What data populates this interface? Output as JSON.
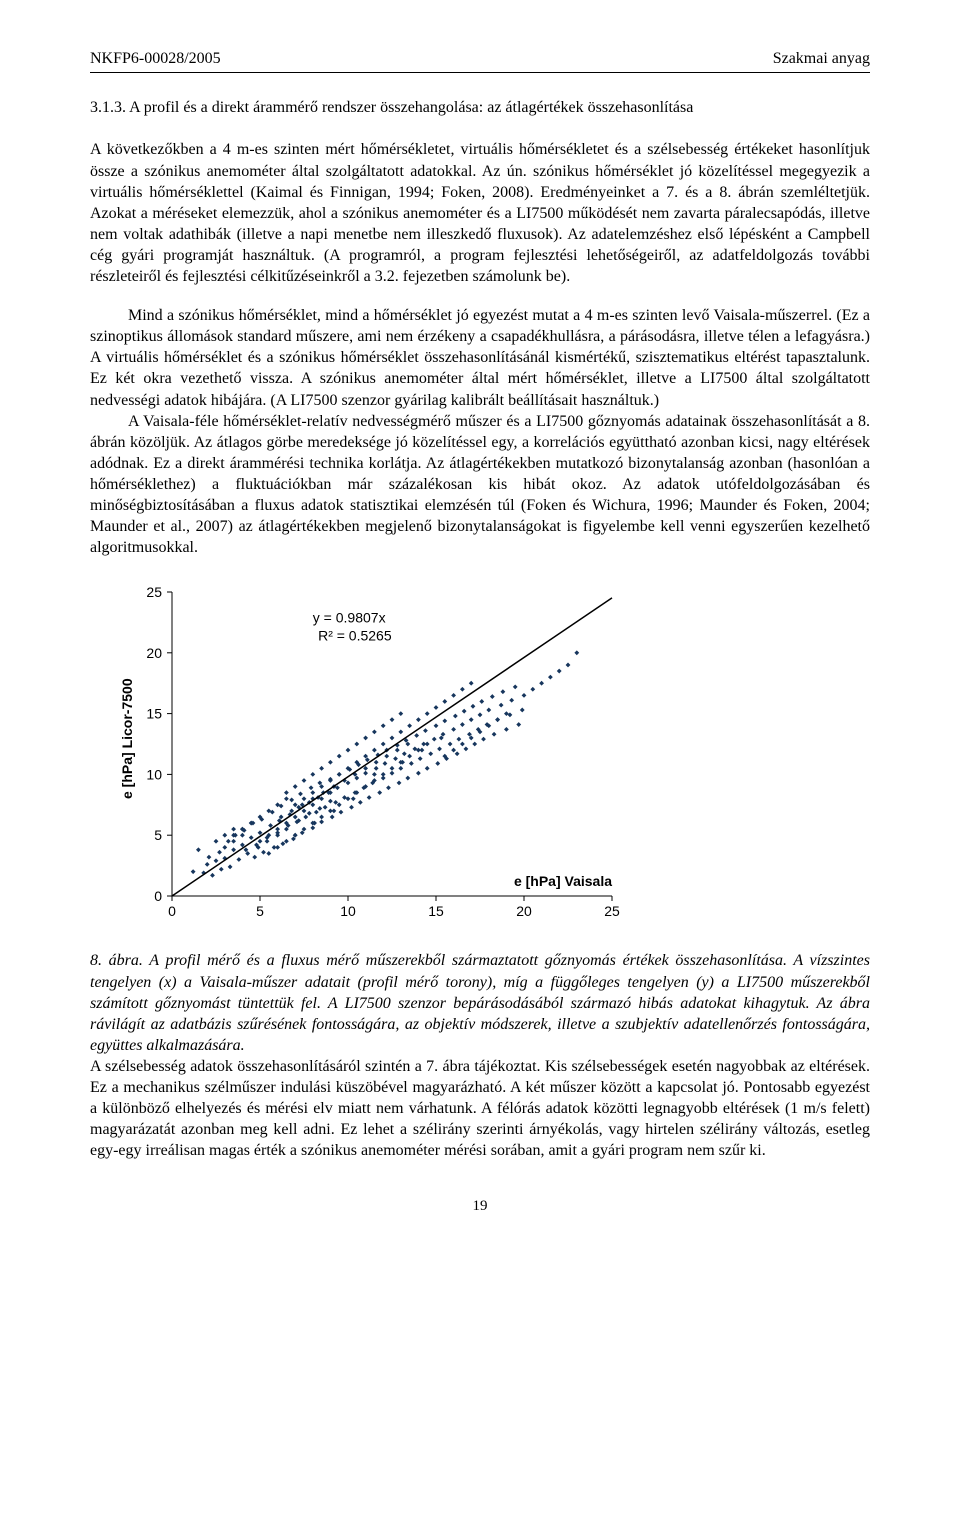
{
  "header": {
    "left": "NKFP6-00028/2005",
    "right": "Szakmai anyag"
  },
  "section": {
    "number": "3.1.3.",
    "title": "A profil és a direkt árammérő rendszer összehangolása: az átlagértékek összehasonlítása"
  },
  "paragraphs": {
    "p1": "A következőkben a 4 m-es szinten mért hőmérsékletet, virtuális hőmérsékletet és a szélsebesség értékeket hasonlítjuk össze a szónikus anemométer által szolgáltatott adatokkal. Az ún. szónikus hőmérséklet jó közelítéssel megegyezik a virtuális hőmérséklettel (Kaimal és Finnigan, 1994; Foken, 2008). Eredményeinket a 7. és a 8. ábrán szemléltetjük. Azokat a méréseket elemezzük, ahol a szónikus anemométer és a LI7500 működését nem zavarta páralecsapódás, illetve nem voltak adathibák (illetve a napi menetbe nem illeszkedő fluxusok). Az adatelemzéshez első lépésként a Campbell cég gyári programját használtuk. (A programról, a program fejlesztési lehetőségeiről, az adatfeldolgozás további részleteiről és fejlesztési célkitűzéseinkről a 3.2. fejezetben számolunk be).",
    "p2": "Mind a szónikus hőmérséklet, mind a hőmérséklet jó egyezést mutat a 4 m-es szinten levő Vaisala-műszerrel. (Ez a szinoptikus állomások standard műszere, ami nem érzékeny a csapadékhullásra, a párásodásra, illetve télen a lefagyásra.) A virtuális hőmérséklet és a szónikus hőmérséklet összehasonlításánál kismértékű, szisztematikus eltérést tapasztalunk. Ez két okra vezethető vissza. A szónikus anemométer által mért hőmérséklet, illetve a LI7500 által szolgáltatott nedvességi adatok hibájára. (A LI7500 szenzor gyárilag kalibrált beállításait használtuk.)",
    "p3": "A Vaisala-féle hőmérséklet-relatív nedvességmérő műszer és a LI7500 gőznyomás adatainak összehasonlítását a 8. ábrán közöljük. Az átlagos görbe meredeksége jó közelítéssel egy, a korrelációs együttható azonban kicsi, nagy eltérések adódnak. Ez a direkt árammérési technika korlátja. Az átlagértékekben mutatkozó bizonytalanság azonban (hasonlóan a hőmérséklethez) a fluktuációkban már százalékosan kis hibát okoz. Az adatok utófeldolgozásában és minőségbiztosításában a fluxus adatok statisztikai elemzésén túl (Foken és Wichura, 1996; Maunder és Foken, 2004; Maunder et al., 2007) az átlagértékekben megjelenő bizonytalanságokat is figyelembe kell venni egyszerűen kezelhető algoritmusokkal."
  },
  "chart": {
    "type": "scatter",
    "xlim": [
      0,
      25
    ],
    "ylim": [
      0,
      25
    ],
    "xticks": [
      0,
      5,
      10,
      15,
      20,
      25
    ],
    "yticks": [
      0,
      5,
      10,
      15,
      20,
      25
    ],
    "ylabel": "e [hPa] Licor-7500",
    "xlabel": "e [hPa] Vaisala",
    "eq_line1": "y = 0.9807x",
    "eq_line2": "R² = 0.5265",
    "marker_color": "#17365d",
    "line_color": "#000000",
    "background": "#ffffff",
    "line_slope": 0.9807,
    "line_intercept": 0,
    "marker_size": 2.4,
    "tick_fontsize": 14,
    "label_fontsize": 14,
    "points": [
      [
        1.2,
        2.0
      ],
      [
        1.5,
        3.8
      ],
      [
        1.8,
        1.9
      ],
      [
        2.0,
        2.6
      ],
      [
        2.1,
        3.2
      ],
      [
        2.3,
        1.7
      ],
      [
        2.5,
        2.9
      ],
      [
        2.7,
        3.6
      ],
      [
        2.8,
        2.2
      ],
      [
        3.0,
        3.1
      ],
      [
        3.2,
        4.5
      ],
      [
        3.3,
        2.4
      ],
      [
        3.5,
        3.8
      ],
      [
        3.6,
        5.0
      ],
      [
        3.8,
        3.0
      ],
      [
        4.0,
        4.2
      ],
      [
        4.1,
        5.4
      ],
      [
        4.3,
        3.5
      ],
      [
        4.5,
        4.8
      ],
      [
        4.6,
        6.0
      ],
      [
        4.7,
        3.2
      ],
      [
        4.9,
        4.0
      ],
      [
        5.0,
        5.2
      ],
      [
        5.1,
        6.3
      ],
      [
        5.2,
        3.6
      ],
      [
        5.4,
        4.5
      ],
      [
        5.6,
        5.8
      ],
      [
        5.7,
        6.9
      ],
      [
        5.8,
        4.0
      ],
      [
        6.0,
        5.0
      ],
      [
        6.1,
        6.2
      ],
      [
        6.2,
        7.4
      ],
      [
        6.3,
        4.3
      ],
      [
        6.5,
        5.5
      ],
      [
        6.7,
        6.7
      ],
      [
        6.8,
        7.9
      ],
      [
        6.9,
        4.7
      ],
      [
        7.0,
        5.0
      ],
      [
        7.1,
        6.1
      ],
      [
        7.2,
        7.3
      ],
      [
        7.3,
        8.4
      ],
      [
        7.4,
        5.2
      ],
      [
        7.6,
        6.5
      ],
      [
        7.8,
        7.7
      ],
      [
        7.9,
        8.9
      ],
      [
        8.0,
        5.6
      ],
      [
        8.1,
        6.0
      ],
      [
        8.2,
        6.9
      ],
      [
        8.3,
        8.1
      ],
      [
        8.4,
        9.3
      ],
      [
        8.5,
        6.1
      ],
      [
        8.7,
        7.3
      ],
      [
        8.9,
        8.5
      ],
      [
        9.0,
        9.6
      ],
      [
        9.1,
        6.5
      ],
      [
        9.2,
        7.0
      ],
      [
        9.3,
        7.7
      ],
      [
        9.4,
        8.9
      ],
      [
        9.5,
        10.0
      ],
      [
        9.6,
        6.9
      ],
      [
        9.8,
        8.1
      ],
      [
        10.0,
        9.3
      ],
      [
        10.1,
        10.4
      ],
      [
        10.2,
        7.3
      ],
      [
        10.3,
        8.0
      ],
      [
        10.4,
        8.5
      ],
      [
        10.5,
        9.7
      ],
      [
        10.6,
        10.8
      ],
      [
        10.7,
        7.7
      ],
      [
        10.9,
        8.9
      ],
      [
        11.0,
        10.1
      ],
      [
        11.1,
        11.2
      ],
      [
        11.2,
        8.1
      ],
      [
        11.4,
        9.3
      ],
      [
        11.5,
        10.0
      ],
      [
        11.6,
        10.5
      ],
      [
        11.7,
        11.6
      ],
      [
        11.8,
        8.5
      ],
      [
        12.0,
        9.7
      ],
      [
        12.1,
        10.9
      ],
      [
        12.2,
        12.0
      ],
      [
        12.3,
        8.9
      ],
      [
        12.5,
        10.1
      ],
      [
        12.7,
        11.3
      ],
      [
        12.8,
        12.4
      ],
      [
        12.9,
        9.3
      ],
      [
        13.0,
        10.5
      ],
      [
        13.1,
        11.0
      ],
      [
        13.2,
        11.7
      ],
      [
        13.3,
        12.8
      ],
      [
        13.4,
        9.7
      ],
      [
        13.6,
        10.9
      ],
      [
        13.8,
        12.1
      ],
      [
        13.9,
        13.2
      ],
      [
        14.0,
        10.1
      ],
      [
        14.1,
        11.3
      ],
      [
        14.2,
        12.0
      ],
      [
        14.3,
        12.5
      ],
      [
        14.4,
        13.6
      ],
      [
        14.5,
        10.5
      ],
      [
        14.7,
        11.7
      ],
      [
        14.9,
        12.9
      ],
      [
        15.0,
        14.0
      ],
      [
        15.1,
        10.9
      ],
      [
        15.2,
        12.1
      ],
      [
        15.3,
        13.0
      ],
      [
        15.4,
        13.3
      ],
      [
        15.5,
        14.4
      ],
      [
        15.6,
        11.3
      ],
      [
        15.8,
        12.5
      ],
      [
        16.0,
        13.7
      ],
      [
        16.1,
        14.8
      ],
      [
        16.2,
        11.7
      ],
      [
        16.3,
        12.9
      ],
      [
        16.5,
        14.1
      ],
      [
        16.6,
        15.2
      ],
      [
        16.7,
        12.1
      ],
      [
        16.9,
        13.3
      ],
      [
        17.0,
        14.5
      ],
      [
        17.1,
        15.6
      ],
      [
        17.2,
        12.5
      ],
      [
        17.4,
        13.7
      ],
      [
        17.5,
        14.9
      ],
      [
        17.6,
        16.0
      ],
      [
        17.7,
        12.9
      ],
      [
        17.9,
        14.1
      ],
      [
        18.0,
        15.3
      ],
      [
        18.2,
        16.4
      ],
      [
        18.3,
        13.3
      ],
      [
        18.5,
        14.5
      ],
      [
        18.7,
        15.7
      ],
      [
        18.8,
        16.8
      ],
      [
        19.0,
        13.7
      ],
      [
        19.2,
        14.9
      ],
      [
        19.3,
        16.1
      ],
      [
        19.5,
        17.2
      ],
      [
        19.7,
        14.1
      ],
      [
        19.9,
        15.3
      ],
      [
        20.0,
        16.5
      ],
      [
        20.5,
        17.0
      ],
      [
        21.0,
        17.5
      ],
      [
        21.5,
        18.0
      ],
      [
        22.0,
        18.5
      ],
      [
        22.5,
        19.0
      ],
      [
        23.0,
        20.0
      ],
      [
        6.5,
        8.5
      ],
      [
        7.0,
        9.0
      ],
      [
        7.5,
        9.5
      ],
      [
        8.0,
        10.0
      ],
      [
        8.5,
        10.5
      ],
      [
        9.0,
        11.0
      ],
      [
        9.5,
        11.5
      ],
      [
        10.0,
        12.0
      ],
      [
        10.5,
        12.5
      ],
      [
        11.0,
        13.0
      ],
      [
        11.5,
        13.5
      ],
      [
        12.0,
        14.0
      ],
      [
        12.5,
        14.5
      ],
      [
        13.0,
        15.0
      ],
      [
        5.5,
        3.5
      ],
      [
        6.0,
        4.0
      ],
      [
        6.5,
        4.5
      ],
      [
        7.0,
        5.0
      ],
      [
        7.5,
        5.5
      ],
      [
        8.0,
        6.0
      ],
      [
        8.5,
        6.5
      ],
      [
        9.0,
        7.0
      ],
      [
        9.5,
        7.5
      ],
      [
        10.0,
        8.0
      ],
      [
        10.5,
        8.5
      ],
      [
        11.0,
        9.0
      ],
      [
        11.5,
        9.5
      ],
      [
        12.0,
        10.0
      ],
      [
        12.5,
        10.5
      ],
      [
        13.0,
        11.0
      ],
      [
        13.5,
        11.5
      ],
      [
        14.0,
        12.0
      ],
      [
        14.5,
        12.5
      ],
      [
        4.0,
        5.5
      ],
      [
        4.5,
        6.0
      ],
      [
        5.0,
        6.5
      ],
      [
        5.5,
        7.0
      ],
      [
        6.0,
        7.5
      ],
      [
        6.5,
        8.0
      ],
      [
        3.0,
        4.0
      ],
      [
        3.5,
        4.5
      ],
      [
        4.0,
        5.0
      ],
      [
        7.0,
        7.5
      ],
      [
        7.5,
        8.0
      ],
      [
        8.0,
        8.5
      ],
      [
        8.5,
        9.0
      ],
      [
        9.0,
        9.5
      ],
      [
        9.5,
        10.0
      ],
      [
        10.0,
        10.5
      ],
      [
        10.5,
        11.0
      ],
      [
        11.0,
        11.5
      ],
      [
        11.5,
        12.0
      ],
      [
        12.0,
        12.5
      ],
      [
        12.5,
        13.0
      ],
      [
        13.0,
        13.5
      ],
      [
        13.5,
        14.0
      ],
      [
        14.0,
        14.5
      ],
      [
        14.5,
        15.0
      ],
      [
        15.0,
        15.5
      ],
      [
        15.5,
        16.0
      ],
      [
        16.0,
        16.5
      ],
      [
        16.5,
        17.0
      ],
      [
        17.0,
        17.5
      ],
      [
        6.2,
        6.5
      ],
      [
        6.8,
        7.0
      ],
      [
        7.4,
        7.5
      ],
      [
        8.0,
        8.0
      ],
      [
        8.6,
        8.5
      ],
      [
        9.2,
        9.0
      ],
      [
        9.8,
        9.5
      ],
      [
        10.4,
        10.0
      ],
      [
        11.0,
        10.5
      ],
      [
        11.6,
        11.0
      ],
      [
        12.2,
        11.5
      ],
      [
        12.8,
        12.0
      ],
      [
        13.4,
        12.5
      ],
      [
        5.0,
        4.5
      ],
      [
        5.5,
        5.0
      ],
      [
        6.0,
        5.5
      ],
      [
        6.5,
        6.0
      ],
      [
        7.0,
        6.5
      ],
      [
        7.5,
        7.0
      ],
      [
        8.0,
        7.5
      ],
      [
        8.5,
        8.0
      ],
      [
        9.0,
        8.5
      ],
      [
        4.2,
        3.8
      ],
      [
        4.8,
        4.2
      ],
      [
        5.4,
        4.8
      ],
      [
        6.0,
        5.2
      ],
      [
        6.6,
        5.8
      ],
      [
        7.2,
        6.2
      ],
      [
        7.8,
        6.8
      ],
      [
        8.4,
        7.2
      ],
      [
        9.0,
        7.8
      ],
      [
        3.5,
        5.0
      ],
      [
        4.0,
        5.5
      ],
      [
        4.5,
        6.0
      ],
      [
        15.5,
        11.5
      ],
      [
        16.0,
        12.0
      ],
      [
        16.5,
        12.5
      ],
      [
        17.0,
        13.0
      ],
      [
        17.5,
        13.5
      ],
      [
        18.0,
        14.0
      ],
      [
        18.5,
        14.5
      ],
      [
        19.0,
        15.0
      ],
      [
        2.5,
        4.5
      ],
      [
        3.0,
        5.0
      ],
      [
        3.5,
        5.5
      ]
    ]
  },
  "caption": {
    "prefix": "8. ábra.",
    "text": "A profil mérő és a fluxus mérő műszerekből származtatott gőznyomás értékek összehasonlítása. A vízszintes tengelyen (x) a Vaisala-műszer adatait (profil mérő torony), míg a függőleges tengelyen (y) a LI7500 műszerekből számított gőznyomást tüntettük fel. A LI7500 szenzor bepárásodásából származó hibás adatokat kihagytuk. Az ábra rávilágít az adatbázis szűrésének fontosságára, az objektív módszerek, illetve a szubjektív adatellenőrzés fontosságára, együttes alkalmazására."
  },
  "after_caption": "A szélsebesség adatok összehasonlításáról szintén a 7. ábra tájékoztat. Kis szélsebességek esetén nagyobbak az eltérések. Ez a mechanikus szélműszer indulási küszöbével magyarázható. A két műszer között a kapcsolat jó. Pontosabb egyezést a különböző elhelyezés és mérési elv miatt nem várhatunk. A félórás adatok közötti legnagyobb eltérések (1 m/s felett) magyarázatát azonban meg kell adni. Ez lehet a szélirány szerinti árnyékolás, vagy hirtelen szélirány változás, esetleg egy-egy irreálisan magas érték a szónikus anemométer mérési sorában, amit a gyári program nem szűr ki.",
  "page_number": "19"
}
